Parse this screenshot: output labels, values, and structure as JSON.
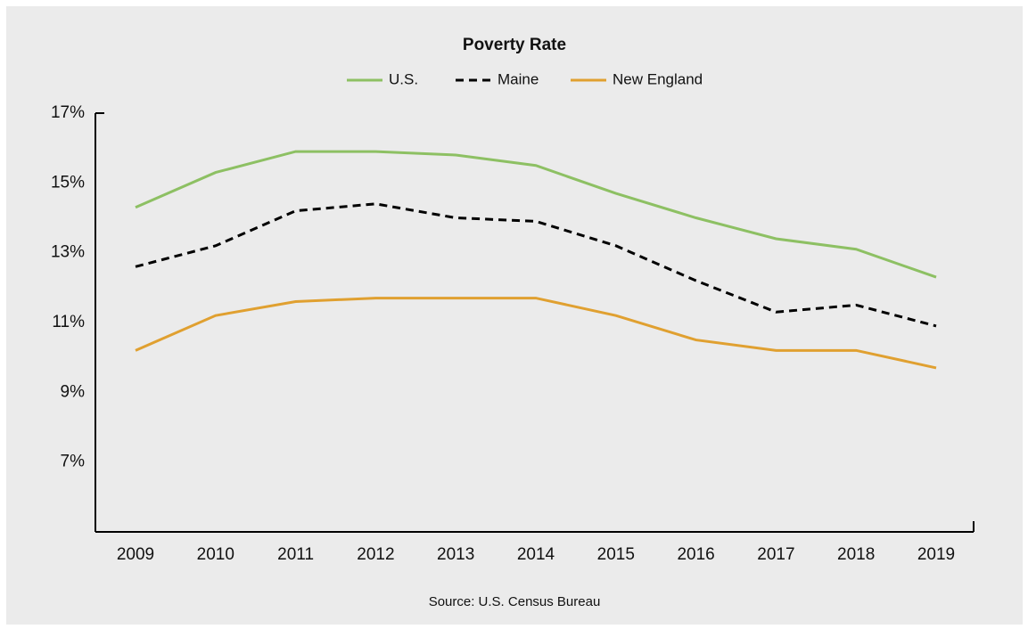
{
  "chart_data": {
    "type": "line",
    "title": "Poverty Rate",
    "categories": [
      "2009",
      "2010",
      "2011",
      "2012",
      "2013",
      "2014",
      "2015",
      "2016",
      "2017",
      "2018",
      "2019"
    ],
    "series": [
      {
        "name": "U.S.",
        "color": "#8dc063",
        "line_style": "solid",
        "values": [
          14.3,
          15.3,
          15.9,
          15.9,
          15.8,
          15.5,
          14.7,
          14.0,
          13.4,
          13.1,
          12.3
        ]
      },
      {
        "name": "Maine",
        "color": "#000000",
        "line_style": "dashed",
        "values": [
          12.6,
          13.2,
          14.2,
          14.4,
          14.0,
          13.9,
          13.2,
          12.2,
          11.3,
          11.5,
          10.9
        ]
      },
      {
        "name": "New England",
        "color": "#e0a030",
        "line_style": "solid",
        "values": [
          10.2,
          11.2,
          11.6,
          11.7,
          11.7,
          11.7,
          11.2,
          10.5,
          10.2,
          10.2,
          9.7
        ]
      }
    ],
    "ylim": [
      5,
      17
    ],
    "yticks": [
      {
        "value": 7,
        "label": "7%"
      },
      {
        "value": 9,
        "label": "9%"
      },
      {
        "value": 11,
        "label": "11%"
      },
      {
        "value": 13,
        "label": "13%"
      },
      {
        "value": 15,
        "label": "15%"
      },
      {
        "value": 17,
        "label": "17%"
      }
    ],
    "grid": false,
    "source": "Source: U.S. Census Bureau"
  }
}
